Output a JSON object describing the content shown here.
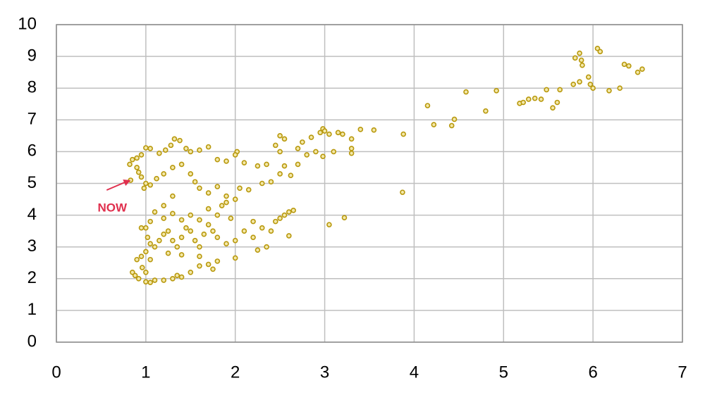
{
  "chart_data": {
    "type": "scatter",
    "x": [
      3.88,
      3.87,
      4.15,
      4.22,
      4.42,
      4.45,
      4.58,
      4.8,
      4.92,
      5.18,
      5.22,
      5.28,
      5.35,
      5.42,
      5.48,
      5.55,
      5.6,
      5.63,
      5.78,
      5.8,
      5.85,
      5.87,
      5.88,
      5.85,
      5.95,
      5.97,
      6.0,
      6.05,
      6.08,
      6.18,
      6.3,
      6.35,
      6.4,
      6.5,
      6.55,
      2.5,
      2.55,
      2.7,
      2.75,
      2.85,
      2.95,
      2.98,
      3.0,
      3.05,
      3.15,
      3.2,
      3.3,
      3.3,
      3.4,
      3.55,
      3.3,
      3.1,
      2.98,
      2.9,
      2.8,
      2.7,
      2.62,
      2.55,
      2.5,
      2.45,
      2.35,
      2.25,
      2.1,
      2.02,
      2.0,
      1.9,
      1.8,
      1.7,
      1.6,
      1.5,
      1.45,
      1.38,
      1.32,
      1.28,
      1.22,
      1.15,
      1.05,
      1.0,
      0.95,
      0.9,
      0.85,
      0.82,
      0.9,
      0.92,
      0.95,
      1.0,
      0.98,
      1.05,
      1.12,
      1.2,
      1.3,
      1.4,
      1.5,
      1.55,
      1.6,
      1.7,
      1.8,
      1.9,
      2.0,
      2.05,
      2.15,
      2.3,
      2.4,
      2.5,
      0.83,
      1.3,
      1.2,
      1.1,
      1.05,
      1.0,
      0.95,
      1.02,
      1.05,
      1.1,
      1.15,
      1.2,
      1.25,
      1.3,
      1.35,
      1.4,
      1.45,
      1.5,
      1.55,
      1.6,
      1.65,
      1.7,
      1.75,
      1.8,
      1.9,
      2.0,
      2.1,
      2.2,
      2.3,
      2.4,
      2.5,
      2.6,
      2.65,
      2.55,
      2.45,
      2.35,
      2.25,
      2.6,
      1.2,
      1.3,
      1.4,
      1.5,
      1.6,
      1.7,
      1.8,
      1.85,
      1.9,
      1.95,
      2.2,
      3.05,
      3.22,
      1.05,
      1.0,
      0.95,
      0.9,
      1.25,
      1.4,
      1.6,
      1.8,
      2.0,
      0.85,
      0.88,
      0.92,
      0.96,
      1.0,
      1.0,
      1.05,
      1.1,
      1.2,
      1.3,
      1.35,
      1.4,
      1.5,
      1.6,
      1.7,
      1.75
    ],
    "series": [
      {
        "color": "#b8980c",
        "values": [
          6.55,
          4.72,
          7.45,
          6.85,
          6.82,
          7.02,
          7.88,
          7.28,
          7.92,
          7.52,
          7.55,
          7.65,
          7.68,
          7.65,
          7.95,
          7.38,
          7.55,
          7.95,
          8.12,
          8.95,
          9.1,
          8.88,
          8.72,
          8.2,
          8.35,
          8.12,
          8.0,
          9.25,
          9.15,
          7.92,
          8.0,
          8.75,
          8.7,
          8.5,
          8.6,
          6.5,
          6.4,
          6.1,
          6.3,
          6.45,
          6.6,
          6.72,
          6.65,
          6.55,
          6.6,
          6.55,
          6.4,
          6.1,
          6.7,
          6.68,
          5.95,
          6.0,
          5.85,
          6.0,
          5.9,
          5.6,
          5.25,
          5.55,
          6.0,
          6.2,
          5.6,
          5.55,
          5.65,
          6.0,
          5.9,
          5.7,
          5.75,
          6.15,
          6.05,
          6.0,
          6.1,
          6.35,
          6.4,
          6.2,
          6.05,
          5.95,
          6.1,
          6.12,
          5.9,
          5.8,
          5.75,
          5.6,
          5.5,
          5.35,
          5.2,
          5.0,
          4.85,
          4.95,
          5.15,
          5.3,
          5.5,
          5.6,
          5.3,
          5.05,
          4.85,
          4.7,
          4.9,
          4.6,
          4.5,
          4.85,
          4.8,
          5.0,
          5.05,
          5.3,
          5.1,
          4.6,
          4.3,
          4.1,
          3.8,
          3.6,
          3.6,
          3.3,
          3.1,
          3.0,
          3.2,
          3.4,
          3.5,
          3.2,
          3.0,
          3.3,
          3.6,
          3.5,
          3.2,
          3.0,
          3.4,
          3.7,
          3.5,
          3.3,
          3.1,
          3.2,
          3.5,
          3.3,
          3.6,
          3.5,
          3.9,
          4.1,
          4.15,
          4.0,
          3.8,
          3.0,
          2.9,
          3.35,
          3.9,
          4.05,
          3.85,
          4.0,
          3.85,
          4.2,
          4.0,
          4.3,
          4.4,
          3.9,
          3.8,
          3.7,
          3.92,
          2.6,
          2.85,
          2.7,
          2.6,
          2.8,
          2.75,
          2.7,
          2.55,
          2.65,
          2.2,
          2.1,
          2.0,
          2.35,
          2.2,
          1.9,
          1.88,
          1.95,
          1.95,
          2.0,
          2.1,
          2.05,
          2.2,
          2.4,
          2.45,
          2.3
        ]
      }
    ],
    "xlim": [
      0,
      7
    ],
    "xticks": [
      0,
      1,
      2,
      3,
      4,
      5,
      6,
      7
    ],
    "ylim": [
      0,
      10
    ],
    "yticks": [
      0,
      1,
      2,
      3,
      4,
      5,
      6,
      7,
      8,
      9,
      10
    ],
    "grid": true,
    "annotation": {
      "text": "NOW",
      "x": 0.83,
      "y": 5.1,
      "color": "#e0304e"
    }
  }
}
